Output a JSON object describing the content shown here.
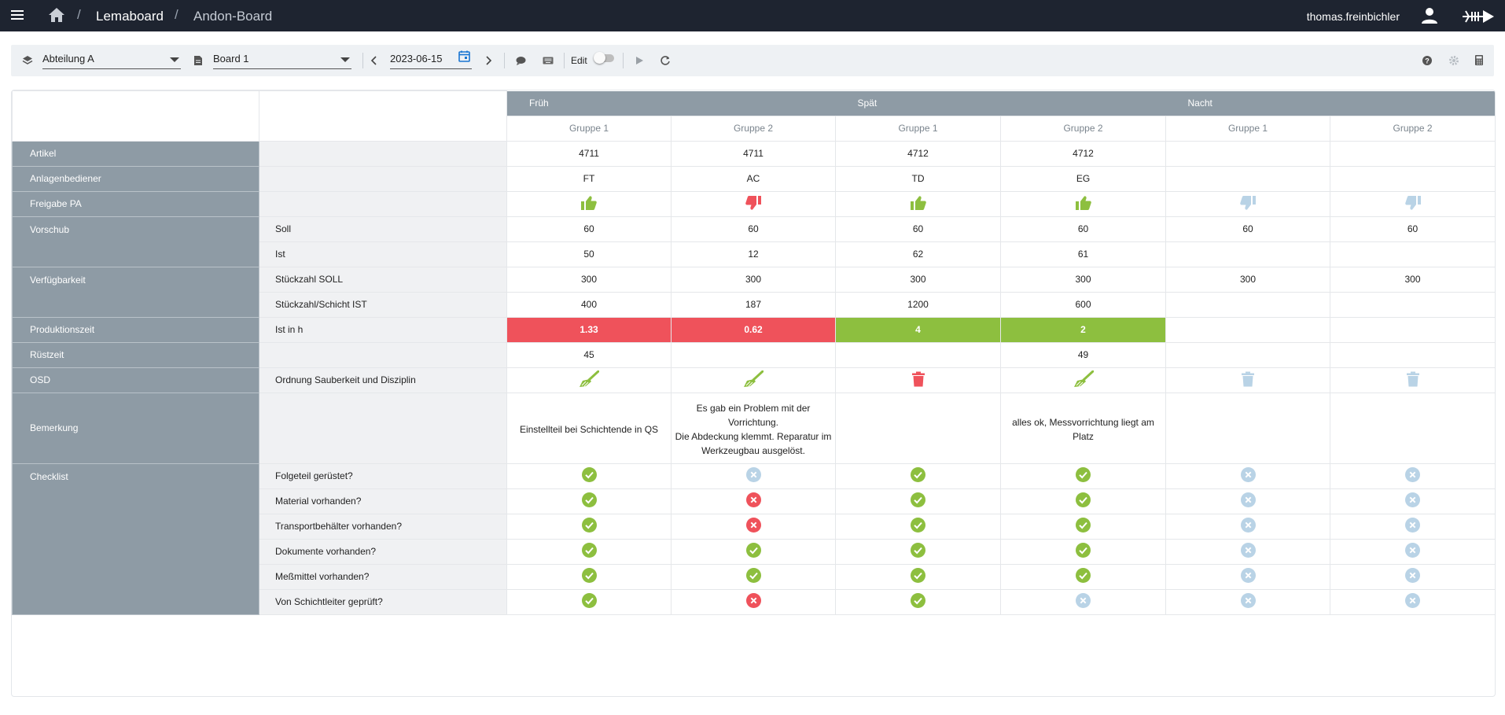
{
  "topbar": {
    "crumbs": [
      "Lemaboard",
      "Andon-Board"
    ],
    "user": "thomas.freinbichler"
  },
  "toolbar": {
    "department": "Abteilung A",
    "board": "Board 1",
    "date": "2023-06-15",
    "edit_label": "Edit"
  },
  "shifts": [
    "Früh",
    "Spät",
    "Nacht"
  ],
  "groups": [
    "Gruppe 1",
    "Gruppe 2",
    "Gruppe 1",
    "Gruppe 2",
    "Gruppe 1",
    "Gruppe 2"
  ],
  "rows": [
    {
      "cat": "Artikel",
      "sub": "",
      "cells": [
        "4711",
        "4711",
        "4712",
        "4712",
        "",
        ""
      ]
    },
    {
      "cat": "Anlagenbediener",
      "sub": "",
      "cells": [
        "FT",
        "AC",
        "TD",
        "EG",
        "",
        ""
      ]
    },
    {
      "cat": "Freigabe PA",
      "sub": "",
      "icons": [
        "thumb-up",
        "thumb-down",
        "thumb-up",
        "thumb-up",
        "thumb-down-empty",
        "thumb-down-empty"
      ]
    },
    {
      "cat": "Vorschub",
      "sub": "Soll",
      "cells": [
        "60",
        "60",
        "60",
        "60",
        "60",
        "60"
      ]
    },
    {
      "cat": "",
      "sub": "Ist",
      "cells": [
        "50",
        "12",
        "62",
        "61",
        "",
        ""
      ]
    },
    {
      "cat": "Verfügbarkeit",
      "sub": "Stückzahl SOLL",
      "cells": [
        "300",
        "300",
        "300",
        "300",
        "300",
        "300"
      ]
    },
    {
      "cat": "",
      "sub": "Stückzahl/Schicht IST",
      "cells": [
        "400",
        "187",
        "1200",
        "600",
        "",
        ""
      ]
    },
    {
      "cat": "Produktionszeit",
      "sub": "Ist in h",
      "cells": [
        "1.33",
        "0.62",
        "4",
        "2",
        "",
        ""
      ],
      "status": [
        "red",
        "red",
        "green",
        "green",
        "",
        ""
      ]
    },
    {
      "cat": "Rüstzeit",
      "sub": "",
      "cells": [
        "45",
        "",
        "",
        "49",
        "",
        ""
      ]
    },
    {
      "cat": "OSD",
      "sub": "Ordnung Sauberkeit und Disziplin",
      "icons": [
        "broom",
        "broom",
        "trash",
        "broom",
        "trash-empty",
        "trash-empty"
      ]
    },
    {
      "cat": "Bemerkung",
      "sub": "",
      "notes": [
        "Einstellteil bei Schichtende in QS",
        "Es gab ein Problem mit der Vorrichtung.\nDie Abdeckung klemmt. Reparatur im Werkzeugbau ausgelöst.",
        "",
        "alles ok, Messvorrichtung liegt am Platz",
        "",
        ""
      ]
    },
    {
      "cat": "Checklist",
      "sub": "Folgeteil gerüstet?",
      "icons": [
        "check",
        "x-empty",
        "check",
        "check",
        "x-empty",
        "x-empty"
      ]
    },
    {
      "cat": "",
      "sub": "Material vorhanden?",
      "icons": [
        "check",
        "x",
        "check",
        "check",
        "x-empty",
        "x-empty"
      ]
    },
    {
      "cat": "",
      "sub": "Transportbehälter vorhanden?",
      "icons": [
        "check",
        "x",
        "check",
        "check",
        "x-empty",
        "x-empty"
      ]
    },
    {
      "cat": "",
      "sub": "Dokumente vorhanden?",
      "icons": [
        "check",
        "check",
        "check",
        "check",
        "x-empty",
        "x-empty"
      ]
    },
    {
      "cat": "",
      "sub": "Meßmittel vorhanden?",
      "icons": [
        "check",
        "check",
        "check",
        "check",
        "x-empty",
        "x-empty"
      ]
    },
    {
      "cat": "",
      "sub": "Von Schichtleiter geprüft?",
      "icons": [
        "check",
        "x",
        "check",
        "x-empty",
        "x-empty",
        "x-empty"
      ]
    }
  ],
  "colors": {
    "green": "#8dbf3f",
    "red": "#ef525b",
    "neutral": "#b9d3e6",
    "header": "#8e9ba5"
  }
}
